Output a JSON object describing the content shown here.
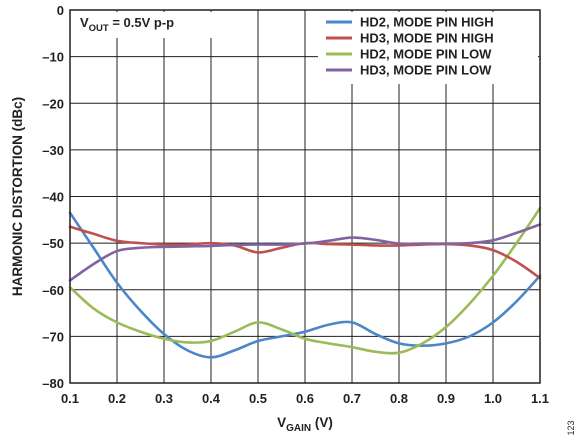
{
  "chart_data": {
    "type": "line",
    "xlabel": {
      "main": "V",
      "sub": "GAIN",
      "unit": " (V)"
    },
    "ylabel": "HARMONIC DISTORTION (dBc)",
    "xlim": [
      0.1,
      1.1
    ],
    "ylim": [
      -80,
      0
    ],
    "x_ticks": [
      0.1,
      0.2,
      0.3,
      0.4,
      0.5,
      0.6,
      0.7,
      0.8,
      0.9,
      1.0,
      1.1
    ],
    "x_tick_labels": [
      "0.1",
      "0.2",
      "0.3",
      "0.4",
      "0.5",
      "0.6",
      "0.7",
      "0.8",
      "0.9",
      "1.0",
      "1.1"
    ],
    "y_ticks": [
      0,
      -10,
      -20,
      -30,
      -40,
      -50,
      -60,
      -70,
      -80
    ],
    "y_tick_labels": [
      "0",
      "–10",
      "–20",
      "–30",
      "–40",
      "–50",
      "–60",
      "–70",
      "–80"
    ],
    "grid": true,
    "legend_position": "top-right",
    "annotation": {
      "main": "V",
      "sub": "OUT",
      "rest": " = 0.5V p-p"
    },
    "figure_number": "123",
    "series": [
      {
        "name": "HD2, MODE PIN HIGH",
        "color": "#4a86c8",
        "x": [
          0.1,
          0.15,
          0.2,
          0.25,
          0.3,
          0.35,
          0.4,
          0.45,
          0.5,
          0.55,
          0.6,
          0.65,
          0.7,
          0.75,
          0.8,
          0.85,
          0.9,
          0.95,
          1.0,
          1.05,
          1.1
        ],
        "y": [
          -43.5,
          -51,
          -58.5,
          -64.5,
          -69.5,
          -73,
          -74.5,
          -73,
          -71,
          -70,
          -69,
          -67.5,
          -67,
          -69.5,
          -71.5,
          -72,
          -71.5,
          -70,
          -67,
          -62.5,
          -57
        ]
      },
      {
        "name": "HD3, MODE PIN HIGH",
        "color": "#c0504d",
        "x": [
          0.1,
          0.15,
          0.2,
          0.25,
          0.3,
          0.35,
          0.4,
          0.45,
          0.5,
          0.55,
          0.6,
          0.65,
          0.7,
          0.75,
          0.8,
          0.85,
          0.9,
          0.95,
          1.0,
          1.05,
          1.1
        ],
        "y": [
          -46.5,
          -48,
          -49.5,
          -50,
          -50.3,
          -50.3,
          -50,
          -50.5,
          -52,
          -51,
          -50,
          -50.2,
          -50.3,
          -50.5,
          -50.5,
          -50.3,
          -50.2,
          -50.5,
          -51.5,
          -54,
          -57.5
        ]
      },
      {
        "name": "HD2, MODE PIN LOW",
        "color": "#9bbb59",
        "x": [
          0.1,
          0.15,
          0.2,
          0.25,
          0.3,
          0.35,
          0.4,
          0.45,
          0.5,
          0.55,
          0.6,
          0.65,
          0.7,
          0.75,
          0.8,
          0.85,
          0.9,
          0.95,
          1.0,
          1.05,
          1.1
        ],
        "y": [
          -59.5,
          -64,
          -67,
          -69,
          -70.5,
          -71.3,
          -71,
          -69,
          -67,
          -68.5,
          -70.5,
          -71.5,
          -72.3,
          -73.3,
          -73.5,
          -71.5,
          -68,
          -63,
          -57,
          -50,
          -42.5
        ]
      },
      {
        "name": "HD3, MODE PIN LOW",
        "color": "#8064a2",
        "x": [
          0.1,
          0.15,
          0.2,
          0.25,
          0.3,
          0.35,
          0.4,
          0.45,
          0.5,
          0.55,
          0.6,
          0.65,
          0.7,
          0.75,
          0.8,
          0.85,
          0.9,
          0.95,
          1.0,
          1.05,
          1.1
        ],
        "y": [
          -58,
          -54.5,
          -51.7,
          -51,
          -50.8,
          -50.7,
          -50.6,
          -50.4,
          -50.3,
          -50.3,
          -50.1,
          -49.5,
          -48.8,
          -49.3,
          -50.1,
          -50.1,
          -50.1,
          -50,
          -49.4,
          -47.8,
          -46
        ]
      }
    ]
  }
}
